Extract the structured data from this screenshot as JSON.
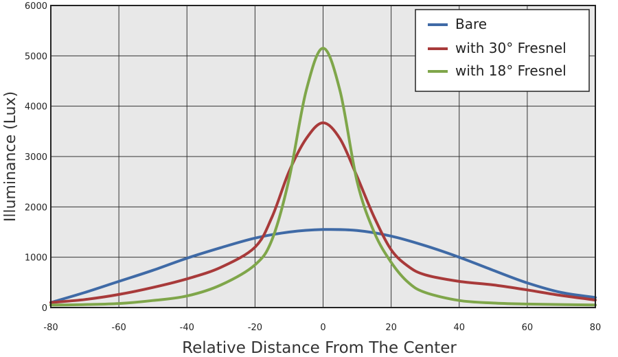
{
  "chart_data": {
    "type": "line",
    "title": "",
    "xlabel": "Relative Distance From The Center",
    "ylabel": "Illuminance (Lux)",
    "xlim": [
      -80,
      80
    ],
    "ylim": [
      0,
      6000
    ],
    "xticks": [
      -80,
      -60,
      -40,
      -20,
      0,
      20,
      40,
      60,
      80
    ],
    "yticks": [
      0,
      1000,
      2000,
      3000,
      4000,
      5000,
      6000
    ],
    "grid": true,
    "legend_position": "top-right",
    "series": [
      {
        "name": "Bare",
        "color": "#3f6aa6",
        "x": [
          -80,
          -70,
          -60,
          -50,
          -40,
          -30,
          -20,
          -10,
          0,
          10,
          20,
          30,
          40,
          50,
          60,
          70,
          80
        ],
        "y": [
          100,
          300,
          520,
          740,
          980,
          1190,
          1380,
          1500,
          1550,
          1530,
          1420,
          1230,
          1000,
          740,
          490,
          300,
          200
        ]
      },
      {
        "name": "with 30° Fresnel",
        "color": "#a83a3a",
        "x": [
          -80,
          -70,
          -60,
          -50,
          -40,
          -30,
          -20,
          -15,
          -10,
          -5,
          0,
          5,
          10,
          15,
          20,
          25,
          30,
          40,
          50,
          60,
          70,
          80
        ],
        "y": [
          100,
          160,
          260,
          400,
          570,
          800,
          1200,
          1800,
          2700,
          3350,
          3670,
          3350,
          2600,
          1800,
          1150,
          820,
          650,
          520,
          450,
          350,
          240,
          150
        ]
      },
      {
        "name": "with 18° Fresnel",
        "color": "#7fa64a",
        "x": [
          -80,
          -70,
          -60,
          -50,
          -40,
          -30,
          -20,
          -15,
          -10,
          -5,
          0,
          5,
          10,
          15,
          20,
          25,
          30,
          40,
          50,
          60,
          70,
          80
        ],
        "y": [
          50,
          60,
          80,
          140,
          230,
          450,
          850,
          1350,
          2550,
          4300,
          5150,
          4300,
          2500,
          1500,
          900,
          500,
          300,
          140,
          90,
          70,
          60,
          50
        ]
      }
    ]
  }
}
